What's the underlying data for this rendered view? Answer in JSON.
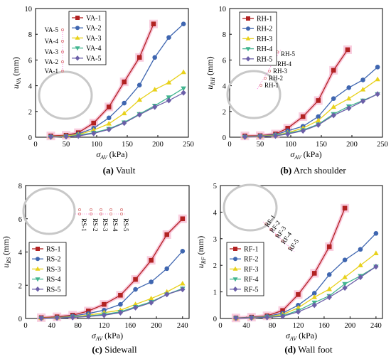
{
  "colors": {
    "series": [
      "#b22222",
      "#3f66b0",
      "#e8d11a",
      "#41b58f",
      "#6b5fa8"
    ],
    "pink_halo": "#f7b9d2",
    "tunnel": "#c8c8c8"
  },
  "marker_shapes": [
    "square",
    "circle",
    "triangle-up",
    "triangle-down",
    "diamond"
  ],
  "chart_data": [
    {
      "type": "line",
      "caption": {
        "label": "(a)",
        "text": " Vault"
      },
      "ylabel": {
        "main": "u",
        "sub": "VA",
        "unit": " (mm)"
      },
      "xlabel": {
        "main": "σ",
        "sub": "AV",
        "unit": " (kPa)"
      },
      "xlim": [
        0,
        250
      ],
      "ylim": [
        0,
        10
      ],
      "xticks": [
        0,
        50,
        100,
        150,
        200,
        250
      ],
      "yticks": [
        0,
        2,
        4,
        6,
        8,
        10
      ],
      "legend": "top-right",
      "halo_series": 0,
      "series": [
        {
          "name": "VA-1",
          "x": [
            25,
            50,
            70,
            95,
            120,
            145,
            170,
            193
          ],
          "y": [
            0.1,
            0.15,
            0.35,
            1.1,
            2.35,
            4.3,
            6.2,
            8.8
          ]
        },
        {
          "name": "VA-2",
          "x": [
            25,
            50,
            70,
            95,
            120,
            145,
            170,
            195,
            218,
            242
          ],
          "y": [
            0.05,
            0.1,
            0.25,
            0.7,
            1.5,
            2.65,
            4.05,
            6.2,
            7.75,
            8.8
          ]
        },
        {
          "name": "VA-3",
          "x": [
            25,
            50,
            70,
            95,
            120,
            145,
            170,
            195,
            218,
            242
          ],
          "y": [
            0.05,
            0.1,
            0.2,
            0.55,
            1.05,
            1.85,
            2.9,
            3.7,
            4.25,
            5.05
          ]
        },
        {
          "name": "VA-4",
          "x": [
            25,
            50,
            70,
            95,
            120,
            145,
            170,
            195,
            218,
            242
          ],
          "y": [
            0.02,
            0.05,
            0.15,
            0.35,
            0.65,
            1.15,
            1.8,
            2.45,
            3.1,
            3.8
          ]
        },
        {
          "name": "VA-5",
          "x": [
            25,
            50,
            70,
            95,
            120,
            145,
            170,
            195,
            218,
            242
          ],
          "y": [
            0.02,
            0.05,
            0.1,
            0.3,
            0.6,
            1.1,
            1.75,
            2.35,
            2.85,
            3.45
          ]
        }
      ],
      "monitoring_points": {
        "labels": [
          "VA-5",
          "VA-4",
          "VA-3",
          "VA-2",
          "VA-1"
        ]
      }
    },
    {
      "type": "line",
      "caption": {
        "label": "(b)",
        "text": " Arch shoulder"
      },
      "ylabel": {
        "main": "u",
        "sub": "RH",
        "unit": " (mm)"
      },
      "xlabel": {
        "main": "σ",
        "sub": "AV",
        "unit": " (kPa)"
      },
      "xlim": [
        0,
        250
      ],
      "ylim": [
        0,
        10
      ],
      "xticks": [
        0,
        50,
        100,
        150,
        200,
        250
      ],
      "yticks": [
        0,
        2,
        4,
        6,
        8,
        10
      ],
      "legend": "top-left",
      "halo_series": 0,
      "series": [
        {
          "name": "RH-1",
          "x": [
            25,
            50,
            75,
            95,
            120,
            145,
            170,
            193
          ],
          "y": [
            0.1,
            0.12,
            0.25,
            0.7,
            1.6,
            2.85,
            5.2,
            6.8
          ]
        },
        {
          "name": "RH-2",
          "x": [
            25,
            50,
            75,
            95,
            120,
            145,
            170,
            195,
            218,
            242
          ],
          "y": [
            0.05,
            0.1,
            0.2,
            0.5,
            0.85,
            1.6,
            3.0,
            3.85,
            4.45,
            5.45
          ]
        },
        {
          "name": "RH-3",
          "x": [
            25,
            50,
            75,
            95,
            120,
            145,
            170,
            195,
            218,
            242
          ],
          "y": [
            0.05,
            0.08,
            0.15,
            0.35,
            0.7,
            1.3,
            2.35,
            3.0,
            3.7,
            4.5
          ]
        },
        {
          "name": "RH-4",
          "x": [
            25,
            50,
            75,
            95,
            120,
            145,
            170,
            195,
            218,
            242
          ],
          "y": [
            0.02,
            0.05,
            0.12,
            0.3,
            0.55,
            1.0,
            1.8,
            2.4,
            2.85,
            3.35
          ]
        },
        {
          "name": "RH-5",
          "x": [
            25,
            50,
            75,
            95,
            120,
            145,
            170,
            195,
            218,
            242
          ],
          "y": [
            0.02,
            0.05,
            0.1,
            0.25,
            0.5,
            0.95,
            1.7,
            2.25,
            2.8,
            3.35
          ]
        }
      ],
      "monitoring_points": {
        "labels": [
          "RH-5",
          "RH-4",
          "RH-3",
          "RH-2",
          "RH-1"
        ]
      }
    },
    {
      "type": "line",
      "caption": {
        "label": "(c)",
        "text": " Sidewall"
      },
      "ylabel": {
        "main": "u",
        "sub": "RS",
        "unit": " (mm)"
      },
      "xlabel": {
        "main": "σ",
        "sub": "AV",
        "unit": " (kPa)"
      },
      "xlim": [
        0,
        250
      ],
      "ylim": [
        0,
        8
      ],
      "xticks": [
        0,
        40,
        80,
        120,
        160,
        200,
        240
      ],
      "yticks": [
        0,
        2,
        4,
        6,
        8
      ],
      "legend": "bottom-left",
      "halo_series": 0,
      "series": [
        {
          "name": "RS-1",
          "x": [
            24,
            48,
            72,
            96,
            120,
            145,
            168,
            192,
            216,
            240
          ],
          "y": [
            0.05,
            0.1,
            0.2,
            0.45,
            0.85,
            1.4,
            2.35,
            3.5,
            5.05,
            6.0
          ]
        },
        {
          "name": "RS-2",
          "x": [
            24,
            48,
            72,
            96,
            120,
            145,
            168,
            192,
            216,
            240
          ],
          "y": [
            0.02,
            0.05,
            0.15,
            0.3,
            0.5,
            0.85,
            1.75,
            2.2,
            3.0,
            4.05
          ]
        },
        {
          "name": "RS-3",
          "x": [
            24,
            48,
            72,
            96,
            120,
            145,
            168,
            192,
            216,
            240
          ],
          "y": [
            0.02,
            0.05,
            0.1,
            0.2,
            0.35,
            0.5,
            0.85,
            1.2,
            1.6,
            2.1
          ]
        },
        {
          "name": "RS-4",
          "x": [
            24,
            48,
            72,
            96,
            120,
            145,
            168,
            192,
            216,
            240
          ],
          "y": [
            0.01,
            0.03,
            0.08,
            0.15,
            0.25,
            0.4,
            0.7,
            1.0,
            1.45,
            1.8
          ]
        },
        {
          "name": "RS-5",
          "x": [
            24,
            48,
            72,
            96,
            120,
            145,
            168,
            192,
            216,
            240
          ],
          "y": [
            0.01,
            0.03,
            0.06,
            0.12,
            0.2,
            0.35,
            0.65,
            0.95,
            1.45,
            1.75
          ]
        }
      ],
      "monitoring_points": {
        "labels": [
          "RS-1",
          "RS-2",
          "RS-3",
          "RS-4",
          "RS-5"
        ]
      }
    },
    {
      "type": "line",
      "caption": {
        "label": "(d)",
        "text": " Wall foot"
      },
      "ylabel": {
        "main": "u",
        "sub": "RF",
        "unit": " (mm)"
      },
      "xlabel": {
        "main": "σ",
        "sub": "AV",
        "unit": " (kPa)"
      },
      "xlim": [
        0,
        250
      ],
      "ylim": [
        0,
        5
      ],
      "xticks": [
        0,
        40,
        80,
        120,
        160,
        200,
        240
      ],
      "yticks": [
        0,
        1,
        2,
        3,
        4,
        5
      ],
      "legend": "bottom-left",
      "halo_series": 0,
      "series": [
        {
          "name": "RF-1",
          "x": [
            24,
            48,
            72,
            96,
            120,
            145,
            168,
            192
          ],
          "y": [
            0.02,
            0.05,
            0.1,
            0.3,
            0.9,
            1.7,
            2.7,
            4.15
          ]
        },
        {
          "name": "RF-2",
          "x": [
            24,
            48,
            72,
            96,
            120,
            145,
            168,
            192,
            216,
            240
          ],
          "y": [
            0.02,
            0.04,
            0.08,
            0.2,
            0.5,
            0.95,
            1.65,
            2.2,
            2.6,
            3.2
          ]
        },
        {
          "name": "RF-3",
          "x": [
            24,
            48,
            72,
            96,
            120,
            145,
            168,
            192,
            216,
            240
          ],
          "y": [
            0.01,
            0.03,
            0.06,
            0.15,
            0.4,
            0.8,
            1.1,
            1.55,
            2.0,
            2.45
          ]
        },
        {
          "name": "RF-4",
          "x": [
            24,
            48,
            72,
            96,
            120,
            145,
            168,
            192,
            216,
            240
          ],
          "y": [
            0.01,
            0.02,
            0.05,
            0.1,
            0.3,
            0.6,
            0.85,
            1.3,
            1.6,
            1.95
          ]
        },
        {
          "name": "RF-5",
          "x": [
            24,
            48,
            72,
            96,
            120,
            145,
            168,
            192,
            216,
            240
          ],
          "y": [
            0.01,
            0.02,
            0.04,
            0.08,
            0.25,
            0.5,
            0.8,
            1.15,
            1.55,
            1.95
          ]
        }
      ],
      "monitoring_points": {
        "labels": [
          "RF-1",
          "RF-2",
          "RF-3",
          "RF-4",
          "RF-5"
        ]
      }
    }
  ]
}
